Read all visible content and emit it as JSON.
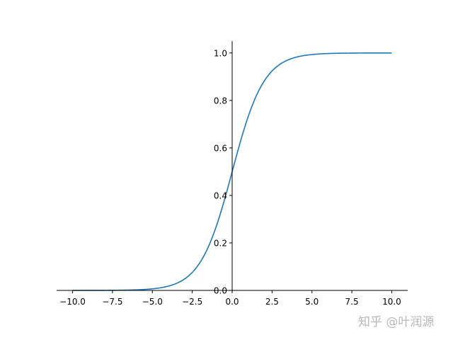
{
  "chart_data": {
    "type": "line",
    "function": "sigmoid 1/(1+exp(-x))",
    "x": [
      -10,
      -7.5,
      -5,
      -2.5,
      -2,
      -1,
      0,
      1,
      2,
      2.5,
      5,
      7.5,
      10
    ],
    "y": [
      4.54e-05,
      0.00055,
      0.0067,
      0.0759,
      0.1192,
      0.2689,
      0.5,
      0.7311,
      0.8808,
      0.9241,
      0.9933,
      0.99945,
      0.9999546
    ],
    "series": [
      {
        "color": "#1f77b4"
      }
    ],
    "xlim": [
      -11,
      11
    ],
    "ylim": [
      0,
      1.05
    ],
    "x_ticks": [
      "−10.0",
      "−7.5",
      "−5.0",
      "−2.5",
      "0.0",
      "2.5",
      "5.0",
      "7.5",
      "10.0"
    ],
    "x_tick_values": [
      -10,
      -7.5,
      -5,
      -2.5,
      0,
      2.5,
      5,
      7.5,
      10
    ],
    "y_ticks": [
      "0.0",
      "0.2",
      "0.4",
      "0.6",
      "0.8",
      "1.0"
    ],
    "y_tick_values": [
      0,
      0.2,
      0.4,
      0.6,
      0.8,
      1.0
    ],
    "spines": "centered at origin (left and bottom only)",
    "grid": false,
    "title": "",
    "xlabel": "",
    "ylabel": ""
  },
  "watermark": "知乎 @叶润源"
}
